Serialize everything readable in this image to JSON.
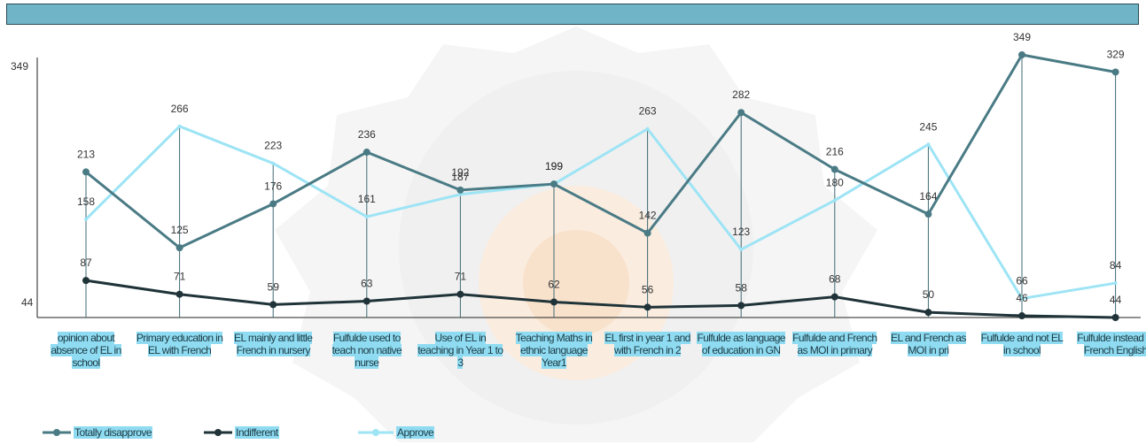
{
  "chart_data": {
    "type": "line",
    "categories": [
      "opinion about absence of EL in school",
      "Primary education in EL with French",
      "EL mainly and little French in nursery",
      "Fulfulde used to teach non native nurse",
      "Use of EL in teaching in Year 1 to 3",
      "Teaching Maths in ethnic language Year1",
      "EL first in year 1 and with French in 2",
      "Fulfulde as language of education in GN",
      "Fulfulde and French as MOI in primary",
      "EL and French as MOI in pri",
      "Fulfulde and not EL in school",
      "Fulfulde instead of French English"
    ],
    "series": [
      {
        "name": "Totally disapprove",
        "color": "#4a7b85",
        "values": [
          213,
          125,
          176,
          236,
          192,
          199,
          142,
          282,
          216,
          164,
          349,
          329
        ]
      },
      {
        "name": "Indifferent",
        "color": "#1f3338",
        "values": [
          87,
          71,
          59,
          63,
          71,
          62,
          56,
          58,
          68,
          50,
          46,
          44
        ]
      },
      {
        "name": "Approve",
        "color": "#9de4f5",
        "values": [
          158,
          266,
          223,
          161,
          187,
          199,
          263,
          123,
          180,
          245,
          66,
          84
        ]
      }
    ],
    "ylim": [
      44,
      349
    ],
    "ytick_labels": [
      "349",
      "44"
    ],
    "legend_position": "bottom-left",
    "grid": false
  },
  "colors": {
    "header_bar": "#6fb5c7",
    "label_highlight": "#8fdcf2"
  }
}
